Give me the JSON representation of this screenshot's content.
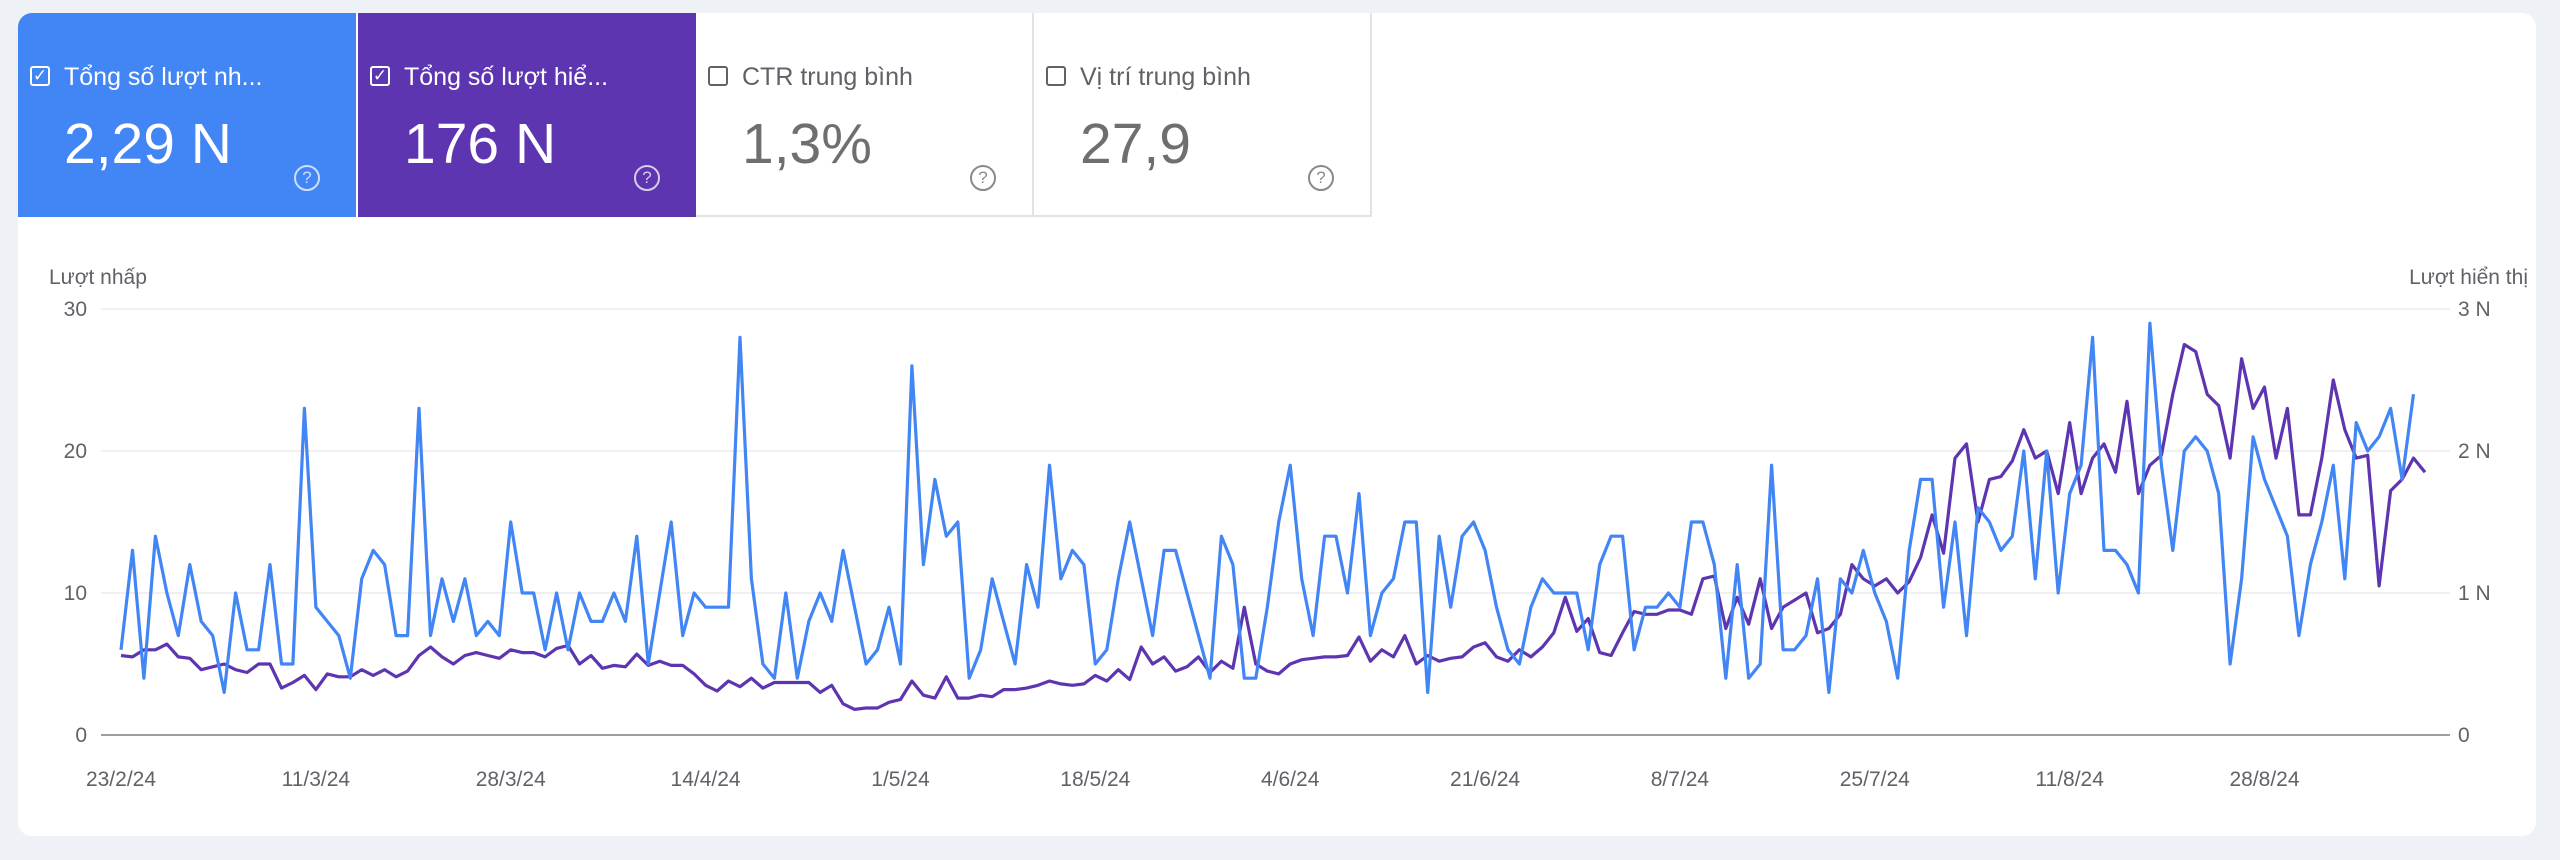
{
  "metrics": [
    {
      "label": "Tổng số lượt nh...",
      "value": "2,29 N",
      "checked": true,
      "color": "#4285f4"
    },
    {
      "label": "Tổng số lượt hiể...",
      "value": "176 N",
      "checked": true,
      "color": "#5e35b1"
    },
    {
      "label": "CTR trung bình",
      "value": "1,3%",
      "checked": false
    },
    {
      "label": "Vị trí trung bình",
      "value": "27,9",
      "checked": false
    }
  ],
  "chart_data": {
    "type": "line",
    "ylabel_left": "Lượt nhấp",
    "ylabel_right": "Lượt hiển thị",
    "yticks_left": [
      "0",
      "10",
      "20",
      "30"
    ],
    "yticks_right": [
      "0",
      "1 N",
      "2 N",
      "3 N"
    ],
    "ylim_left": [
      0,
      30
    ],
    "ylim_right": [
      0,
      3000
    ],
    "x_tick_labels": [
      "23/2/24",
      "11/3/24",
      "28/3/24",
      "14/4/24",
      "1/5/24",
      "18/5/24",
      "4/6/24",
      "21/6/24",
      "8/7/24",
      "25/7/24",
      "11/8/24",
      "28/8/24"
    ],
    "grid": true,
    "series": [
      {
        "axis": "left",
        "color": "#4285f4",
        "values": [
          6,
          13,
          4,
          14,
          10,
          7,
          12,
          8,
          7,
          3,
          10,
          6,
          6,
          12,
          5,
          5,
          23,
          9,
          8,
          7,
          4,
          11,
          13,
          12,
          7,
          7,
          23,
          7,
          11,
          8,
          11,
          7,
          8,
          7,
          15,
          10,
          10,
          6,
          10,
          6,
          10,
          8,
          8,
          10,
          8,
          14,
          5,
          10,
          15,
          7,
          10,
          9,
          9,
          9,
          28,
          11,
          5,
          4,
          10,
          4,
          8,
          10,
          8,
          13,
          9,
          5,
          6,
          9,
          5,
          26,
          12,
          18,
          14,
          15,
          4,
          6,
          11,
          8,
          5,
          12,
          9,
          19,
          11,
          13,
          12,
          5,
          6,
          11,
          15,
          11,
          7,
          13,
          13,
          10,
          7,
          4,
          14,
          12,
          4,
          4,
          9,
          15,
          19,
          11,
          7,
          14,
          14,
          10,
          17,
          7,
          10,
          11,
          15,
          15,
          3,
          14,
          9,
          14,
          15,
          13,
          9,
          6,
          5,
          9,
          11,
          10,
          10,
          10,
          6,
          12,
          14,
          14,
          6,
          9,
          9,
          10,
          9,
          15,
          15,
          12,
          4,
          12,
          4,
          5,
          19,
          6,
          6,
          7,
          11,
          3,
          11,
          10,
          13,
          10,
          8,
          4,
          13,
          18,
          18,
          9,
          15,
          7,
          16,
          15,
          13,
          14,
          20,
          11,
          20,
          10,
          17,
          19,
          28,
          13,
          13,
          12,
          10,
          29,
          19,
          13,
          20,
          21,
          20,
          17,
          5,
          11,
          21,
          18,
          16,
          14,
          7,
          12,
          15,
          19,
          11,
          22,
          20,
          21,
          23,
          18,
          24
        ]
      },
      {
        "axis": "right",
        "color": "#5e35b1",
        "values": [
          560,
          550,
          600,
          600,
          640,
          550,
          540,
          460,
          480,
          500,
          460,
          440,
          500,
          500,
          330,
          370,
          420,
          320,
          430,
          410,
          410,
          460,
          420,
          460,
          410,
          450,
          560,
          620,
          550,
          500,
          560,
          580,
          560,
          540,
          600,
          580,
          580,
          550,
          610,
          630,
          500,
          560,
          470,
          490,
          480,
          570,
          490,
          520,
          490,
          490,
          430,
          350,
          310,
          380,
          340,
          400,
          330,
          370,
          370,
          370,
          370,
          300,
          350,
          220,
          180,
          190,
          190,
          230,
          250,
          380,
          280,
          260,
          410,
          260,
          260,
          280,
          270,
          320,
          320,
          330,
          350,
          380,
          360,
          350,
          360,
          420,
          380,
          460,
          390,
          620,
          500,
          550,
          450,
          480,
          550,
          440,
          520,
          470,
          900,
          500,
          450,
          430,
          500,
          530,
          540,
          550,
          550,
          560,
          690,
          520,
          600,
          550,
          700,
          500,
          560,
          520,
          540,
          550,
          620,
          650,
          550,
          520,
          600,
          550,
          620,
          720,
          970,
          730,
          820,
          580,
          560,
          720,
          870,
          850,
          850,
          880,
          880,
          850,
          1100,
          1120,
          750,
          970,
          780,
          1100,
          750,
          900,
          950,
          1000,
          720,
          750,
          850,
          1200,
          1100,
          1050,
          1100,
          1000,
          1080,
          1250,
          1550,
          1280,
          1950,
          2050,
          1500,
          1800,
          1820,
          1930,
          2150,
          1950,
          2000,
          1700,
          2200,
          1700,
          1950,
          2050,
          1850,
          2350,
          1700,
          1900,
          1970,
          2400,
          2750,
          2700,
          2400,
          2320,
          1950,
          2650,
          2300,
          2450,
          1950,
          2300,
          1550,
          1550,
          1950,
          2500,
          2150,
          1950,
          1970,
          1050,
          1720,
          1800,
          1950,
          1850
        ]
      }
    ]
  }
}
